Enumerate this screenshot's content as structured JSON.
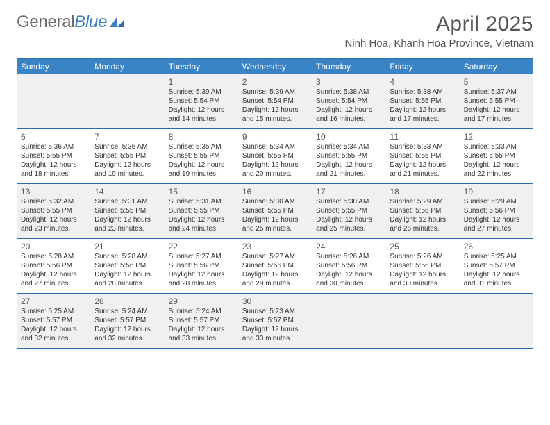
{
  "brand": {
    "part1": "General",
    "part2": "Blue"
  },
  "title": "April 2025",
  "location": "Ninh Hoa, Khanh Hoa Province, Vietnam",
  "colors": {
    "header_bar": "#3a84c6",
    "header_border": "#2a6db0",
    "alt_row": "#f0f0f0",
    "text": "#333333",
    "title_text": "#555555"
  },
  "dayNames": [
    "Sunday",
    "Monday",
    "Tuesday",
    "Wednesday",
    "Thursday",
    "Friday",
    "Saturday"
  ],
  "weeks": [
    [
      {
        "n": "",
        "lines": []
      },
      {
        "n": "",
        "lines": []
      },
      {
        "n": "1",
        "lines": [
          "Sunrise: 5:39 AM",
          "Sunset: 5:54 PM",
          "Daylight: 12 hours",
          "and 14 minutes."
        ]
      },
      {
        "n": "2",
        "lines": [
          "Sunrise: 5:39 AM",
          "Sunset: 5:54 PM",
          "Daylight: 12 hours",
          "and 15 minutes."
        ]
      },
      {
        "n": "3",
        "lines": [
          "Sunrise: 5:38 AM",
          "Sunset: 5:54 PM",
          "Daylight: 12 hours",
          "and 16 minutes."
        ]
      },
      {
        "n": "4",
        "lines": [
          "Sunrise: 5:38 AM",
          "Sunset: 5:55 PM",
          "Daylight: 12 hours",
          "and 17 minutes."
        ]
      },
      {
        "n": "5",
        "lines": [
          "Sunrise: 5:37 AM",
          "Sunset: 5:55 PM",
          "Daylight: 12 hours",
          "and 17 minutes."
        ]
      }
    ],
    [
      {
        "n": "6",
        "lines": [
          "Sunrise: 5:36 AM",
          "Sunset: 5:55 PM",
          "Daylight: 12 hours",
          "and 18 minutes."
        ]
      },
      {
        "n": "7",
        "lines": [
          "Sunrise: 5:36 AM",
          "Sunset: 5:55 PM",
          "Daylight: 12 hours",
          "and 19 minutes."
        ]
      },
      {
        "n": "8",
        "lines": [
          "Sunrise: 5:35 AM",
          "Sunset: 5:55 PM",
          "Daylight: 12 hours",
          "and 19 minutes."
        ]
      },
      {
        "n": "9",
        "lines": [
          "Sunrise: 5:34 AM",
          "Sunset: 5:55 PM",
          "Daylight: 12 hours",
          "and 20 minutes."
        ]
      },
      {
        "n": "10",
        "lines": [
          "Sunrise: 5:34 AM",
          "Sunset: 5:55 PM",
          "Daylight: 12 hours",
          "and 21 minutes."
        ]
      },
      {
        "n": "11",
        "lines": [
          "Sunrise: 5:33 AM",
          "Sunset: 5:55 PM",
          "Daylight: 12 hours",
          "and 21 minutes."
        ]
      },
      {
        "n": "12",
        "lines": [
          "Sunrise: 5:33 AM",
          "Sunset: 5:55 PM",
          "Daylight: 12 hours",
          "and 22 minutes."
        ]
      }
    ],
    [
      {
        "n": "13",
        "lines": [
          "Sunrise: 5:32 AM",
          "Sunset: 5:55 PM",
          "Daylight: 12 hours",
          "and 23 minutes."
        ]
      },
      {
        "n": "14",
        "lines": [
          "Sunrise: 5:31 AM",
          "Sunset: 5:55 PM",
          "Daylight: 12 hours",
          "and 23 minutes."
        ]
      },
      {
        "n": "15",
        "lines": [
          "Sunrise: 5:31 AM",
          "Sunset: 5:55 PM",
          "Daylight: 12 hours",
          "and 24 minutes."
        ]
      },
      {
        "n": "16",
        "lines": [
          "Sunrise: 5:30 AM",
          "Sunset: 5:55 PM",
          "Daylight: 12 hours",
          "and 25 minutes."
        ]
      },
      {
        "n": "17",
        "lines": [
          "Sunrise: 5:30 AM",
          "Sunset: 5:55 PM",
          "Daylight: 12 hours",
          "and 25 minutes."
        ]
      },
      {
        "n": "18",
        "lines": [
          "Sunrise: 5:29 AM",
          "Sunset: 5:56 PM",
          "Daylight: 12 hours",
          "and 26 minutes."
        ]
      },
      {
        "n": "19",
        "lines": [
          "Sunrise: 5:29 AM",
          "Sunset: 5:56 PM",
          "Daylight: 12 hours",
          "and 27 minutes."
        ]
      }
    ],
    [
      {
        "n": "20",
        "lines": [
          "Sunrise: 5:28 AM",
          "Sunset: 5:56 PM",
          "Daylight: 12 hours",
          "and 27 minutes."
        ]
      },
      {
        "n": "21",
        "lines": [
          "Sunrise: 5:28 AM",
          "Sunset: 5:56 PM",
          "Daylight: 12 hours",
          "and 28 minutes."
        ]
      },
      {
        "n": "22",
        "lines": [
          "Sunrise: 5:27 AM",
          "Sunset: 5:56 PM",
          "Daylight: 12 hours",
          "and 28 minutes."
        ]
      },
      {
        "n": "23",
        "lines": [
          "Sunrise: 5:27 AM",
          "Sunset: 5:56 PM",
          "Daylight: 12 hours",
          "and 29 minutes."
        ]
      },
      {
        "n": "24",
        "lines": [
          "Sunrise: 5:26 AM",
          "Sunset: 5:56 PM",
          "Daylight: 12 hours",
          "and 30 minutes."
        ]
      },
      {
        "n": "25",
        "lines": [
          "Sunrise: 5:26 AM",
          "Sunset: 5:56 PM",
          "Daylight: 12 hours",
          "and 30 minutes."
        ]
      },
      {
        "n": "26",
        "lines": [
          "Sunrise: 5:25 AM",
          "Sunset: 5:57 PM",
          "Daylight: 12 hours",
          "and 31 minutes."
        ]
      }
    ],
    [
      {
        "n": "27",
        "lines": [
          "Sunrise: 5:25 AM",
          "Sunset: 5:57 PM",
          "Daylight: 12 hours",
          "and 32 minutes."
        ]
      },
      {
        "n": "28",
        "lines": [
          "Sunrise: 5:24 AM",
          "Sunset: 5:57 PM",
          "Daylight: 12 hours",
          "and 32 minutes."
        ]
      },
      {
        "n": "29",
        "lines": [
          "Sunrise: 5:24 AM",
          "Sunset: 5:57 PM",
          "Daylight: 12 hours",
          "and 33 minutes."
        ]
      },
      {
        "n": "30",
        "lines": [
          "Sunrise: 5:23 AM",
          "Sunset: 5:57 PM",
          "Daylight: 12 hours",
          "and 33 minutes."
        ]
      },
      {
        "n": "",
        "lines": []
      },
      {
        "n": "",
        "lines": []
      },
      {
        "n": "",
        "lines": []
      }
    ]
  ]
}
